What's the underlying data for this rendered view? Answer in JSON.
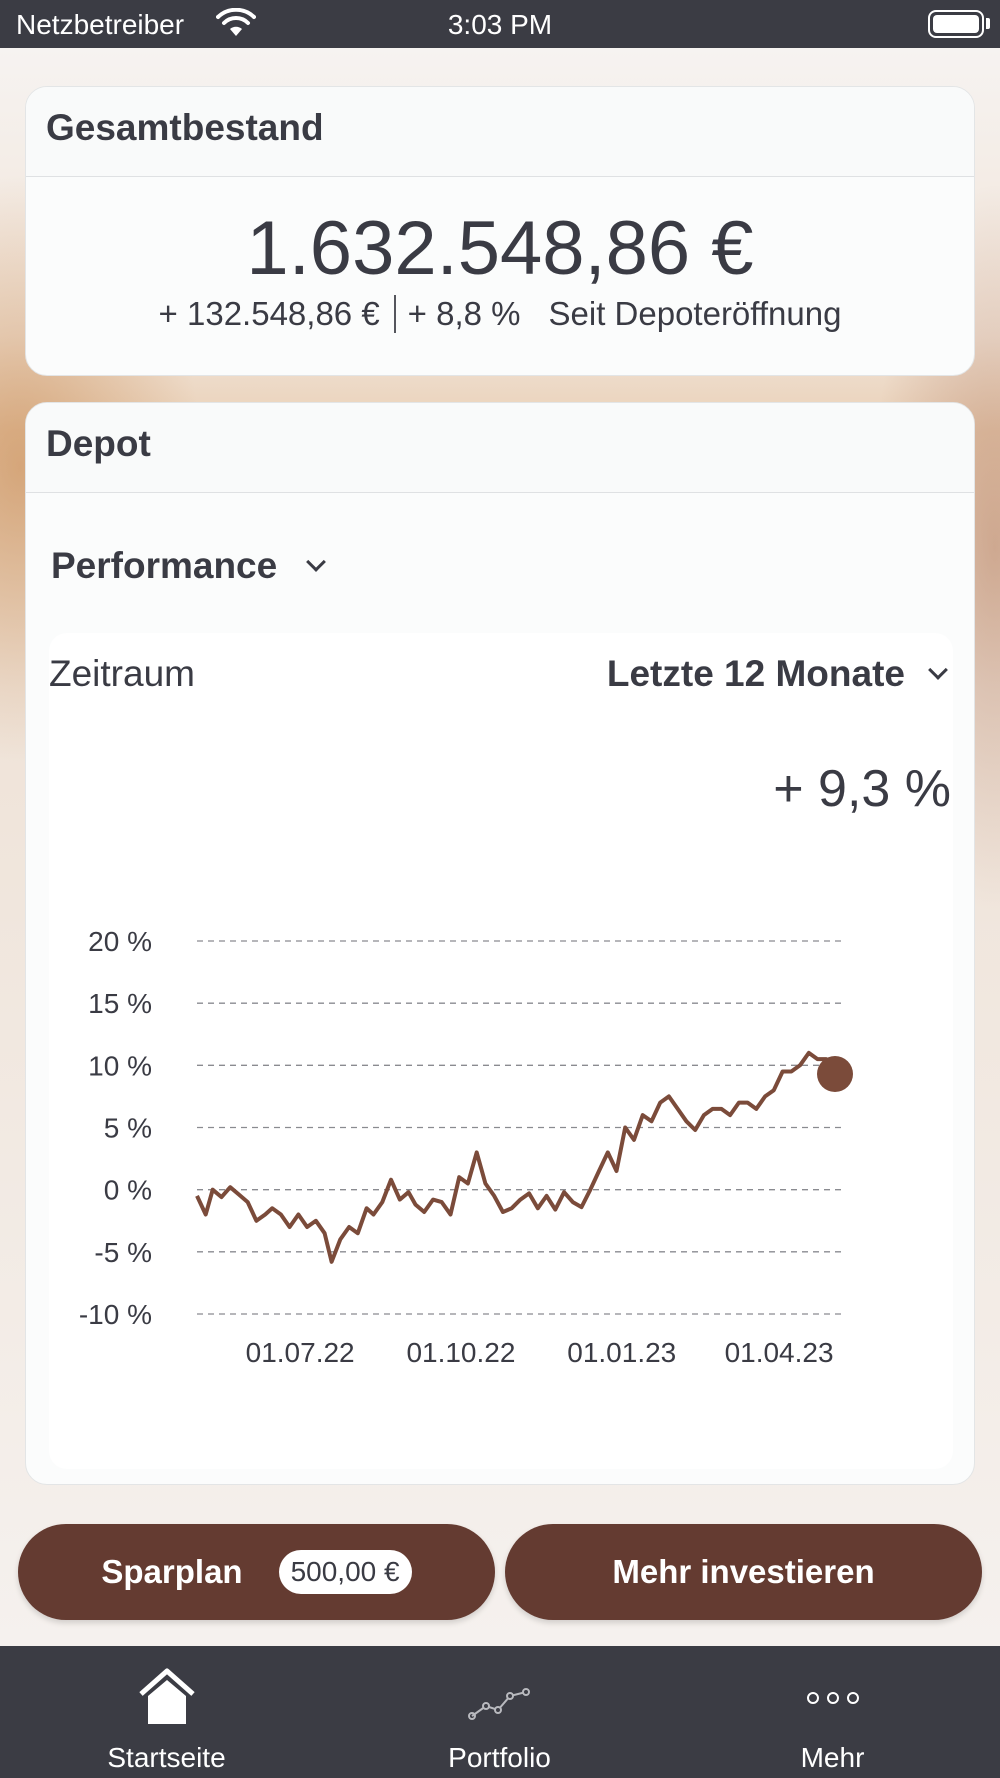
{
  "status_bar": {
    "carrier": "Netzbetreiber",
    "time": "3:03 PM"
  },
  "total": {
    "title": "Gesamtbestand",
    "value": "1.632.548,86 €",
    "change_abs": "+ 132.548,86 €",
    "change_pct": "+ 8,8 %",
    "since": "Seit Depoteröffnung"
  },
  "depot": {
    "title": "Depot",
    "mode_select": "Performance",
    "period_label": "Zeitraum",
    "period_select": "Letzte 12 Monate",
    "performance_value": "+ 9,3 %"
  },
  "chart_data": {
    "type": "line",
    "line_color": "#7b4b3a",
    "grid": true,
    "ylim": [
      -10,
      20
    ],
    "y_ticks": [
      20,
      15,
      10,
      5,
      0,
      -5,
      -10
    ],
    "y_tick_labels": [
      "20 %",
      "15 %",
      "10 %",
      "5 %",
      "0 %",
      "-5 %",
      "-10 %"
    ],
    "x_tick_labels": [
      "01.07.22",
      "01.10.22",
      "01.01.23",
      "01.04.23"
    ],
    "x_tick_dates": [
      "2022-07-01",
      "2022-10-01",
      "2023-01-01",
      "2023-04-01"
    ],
    "x": [
      "2022-05-03",
      "2022-05-08",
      "2022-05-12",
      "2022-05-17",
      "2022-05-22",
      "2022-05-27",
      "2022-06-01",
      "2022-06-06",
      "2022-06-11",
      "2022-06-15",
      "2022-06-20",
      "2022-06-25",
      "2022-06-30",
      "2022-07-05",
      "2022-07-10",
      "2022-07-15",
      "2022-07-19",
      "2022-07-24",
      "2022-07-29",
      "2022-08-03",
      "2022-08-08",
      "2022-08-12",
      "2022-08-17",
      "2022-08-22",
      "2022-08-27",
      "2022-09-01",
      "2022-09-05",
      "2022-09-10",
      "2022-09-15",
      "2022-09-20",
      "2022-09-25",
      "2022-09-30",
      "2022-10-05",
      "2022-10-10",
      "2022-10-15",
      "2022-10-20",
      "2022-10-25",
      "2022-10-30",
      "2022-11-04",
      "2022-11-09",
      "2022-11-14",
      "2022-11-19",
      "2022-11-24",
      "2022-11-29",
      "2022-12-04",
      "2022-12-09",
      "2022-12-14",
      "2022-12-19",
      "2022-12-24",
      "2022-12-29",
      "2023-01-03",
      "2023-01-08",
      "2023-01-13",
      "2023-01-18",
      "2023-01-23",
      "2023-01-28",
      "2023-02-02",
      "2023-02-07",
      "2023-02-12",
      "2023-02-17",
      "2023-02-22",
      "2023-02-27",
      "2023-03-04",
      "2023-03-09",
      "2023-03-14",
      "2023-03-19",
      "2023-03-24",
      "2023-03-29",
      "2023-04-03",
      "2023-04-08",
      "2023-04-13",
      "2023-04-18",
      "2023-04-23",
      "2023-04-28",
      "2023-05-03"
    ],
    "series": [
      {
        "values": [
          -0.5,
          -2.0,
          0.0,
          -0.6,
          0.2,
          -0.4,
          -1.0,
          -2.5,
          -2.0,
          -1.5,
          -2.0,
          -3.0,
          -2.0,
          -3.0,
          -2.5,
          -3.5,
          -5.8,
          -4.0,
          -3.0,
          -3.5,
          -1.5,
          -2.0,
          -1.0,
          0.8,
          -0.8,
          -0.2,
          -1.2,
          -1.8,
          -0.8,
          -1.0,
          -2.0,
          1.0,
          0.5,
          3.0,
          0.5,
          -0.5,
          -1.8,
          -1.5,
          -0.8,
          -0.3,
          -1.5,
          -0.5,
          -1.6,
          -0.2,
          -1.0,
          -1.4,
          0.0,
          1.5,
          3.0,
          1.5,
          5.0,
          4.0,
          6.0,
          5.5,
          7.0,
          7.5,
          6.5,
          5.5,
          4.8,
          6.0,
          6.5,
          6.5,
          6.0,
          7.0,
          7.0,
          6.5,
          7.5,
          8.0,
          9.5,
          9.5,
          10.0,
          11.0,
          10.5,
          10.5,
          9.3
        ]
      }
    ]
  },
  "actions": {
    "sparplan_label": "Sparplan",
    "sparplan_amount": "500,00 €",
    "invest_label": "Mehr investieren"
  },
  "tabs": [
    {
      "label": "Startseite",
      "icon": "home-icon"
    },
    {
      "label": "Portfolio",
      "icon": "portfolio-chart-icon"
    },
    {
      "label": "Mehr",
      "icon": "more-dots-icon"
    }
  ],
  "colors": {
    "primary": "#643b31",
    "bar": "#3b3c44",
    "text": "#3a3b44"
  }
}
